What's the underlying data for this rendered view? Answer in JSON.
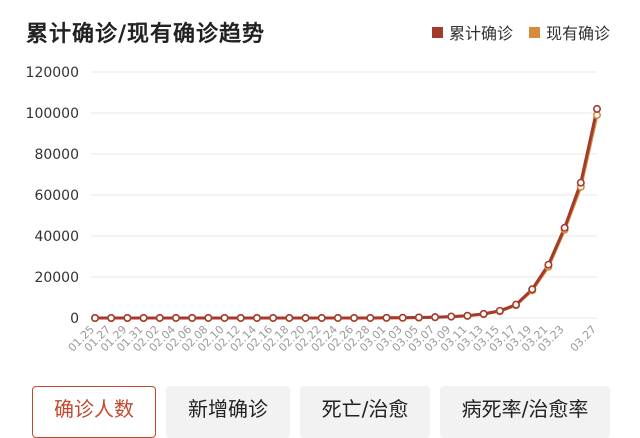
{
  "header": {
    "title": "累计确诊/现有确诊趋势"
  },
  "legend": [
    {
      "label": "累计确诊",
      "color": "#a33a2b"
    },
    {
      "label": "现有确诊",
      "color": "#d68a3c"
    }
  ],
  "tabs": [
    {
      "label": "确诊人数",
      "active": true
    },
    {
      "label": "新增确诊",
      "active": false
    },
    {
      "label": "死亡/治愈",
      "active": false
    },
    {
      "label": "病死率/治愈率",
      "active": false
    }
  ],
  "chart_data": {
    "type": "line",
    "title": "累计确诊/现有确诊趋势",
    "xlabel": "",
    "ylabel": "",
    "ylim": [
      0,
      120000
    ],
    "yticks": [
      0,
      20000,
      40000,
      60000,
      80000,
      100000,
      120000
    ],
    "grid": true,
    "legend_position": "top-right",
    "x": [
      "01.25",
      "01.27",
      "01.29",
      "01.31",
      "02.02",
      "02.04",
      "02.06",
      "02.08",
      "02.10",
      "02.12",
      "02.14",
      "02.16",
      "02.18",
      "02.20",
      "02.22",
      "02.24",
      "02.26",
      "02.28",
      "03.01",
      "03.03",
      "03.05",
      "03.07",
      "03.09",
      "03.11",
      "03.13",
      "03.15",
      "03.17",
      "03.19",
      "03.21",
      "03.23",
      "",
      "03.27"
    ],
    "series": [
      {
        "name": "累计确诊",
        "color": "#a33a2b",
        "values": [
          2,
          6,
          6,
          7,
          11,
          11,
          12,
          12,
          12,
          13,
          15,
          15,
          15,
          15,
          15,
          15,
          15,
          15,
          75,
          100,
          250,
          400,
          700,
          1100,
          2000,
          3500,
          6500,
          14000,
          26000,
          44000,
          66000,
          102000
        ]
      },
      {
        "name": "现有确诊",
        "color": "#d68a3c",
        "values": [
          2,
          6,
          6,
          7,
          11,
          11,
          11,
          11,
          11,
          11,
          11,
          11,
          10,
          10,
          10,
          10,
          10,
          10,
          70,
          95,
          240,
          390,
          680,
          1050,
          1900,
          3300,
          6200,
          13500,
          25000,
          43000,
          64000,
          99000
        ]
      }
    ]
  }
}
